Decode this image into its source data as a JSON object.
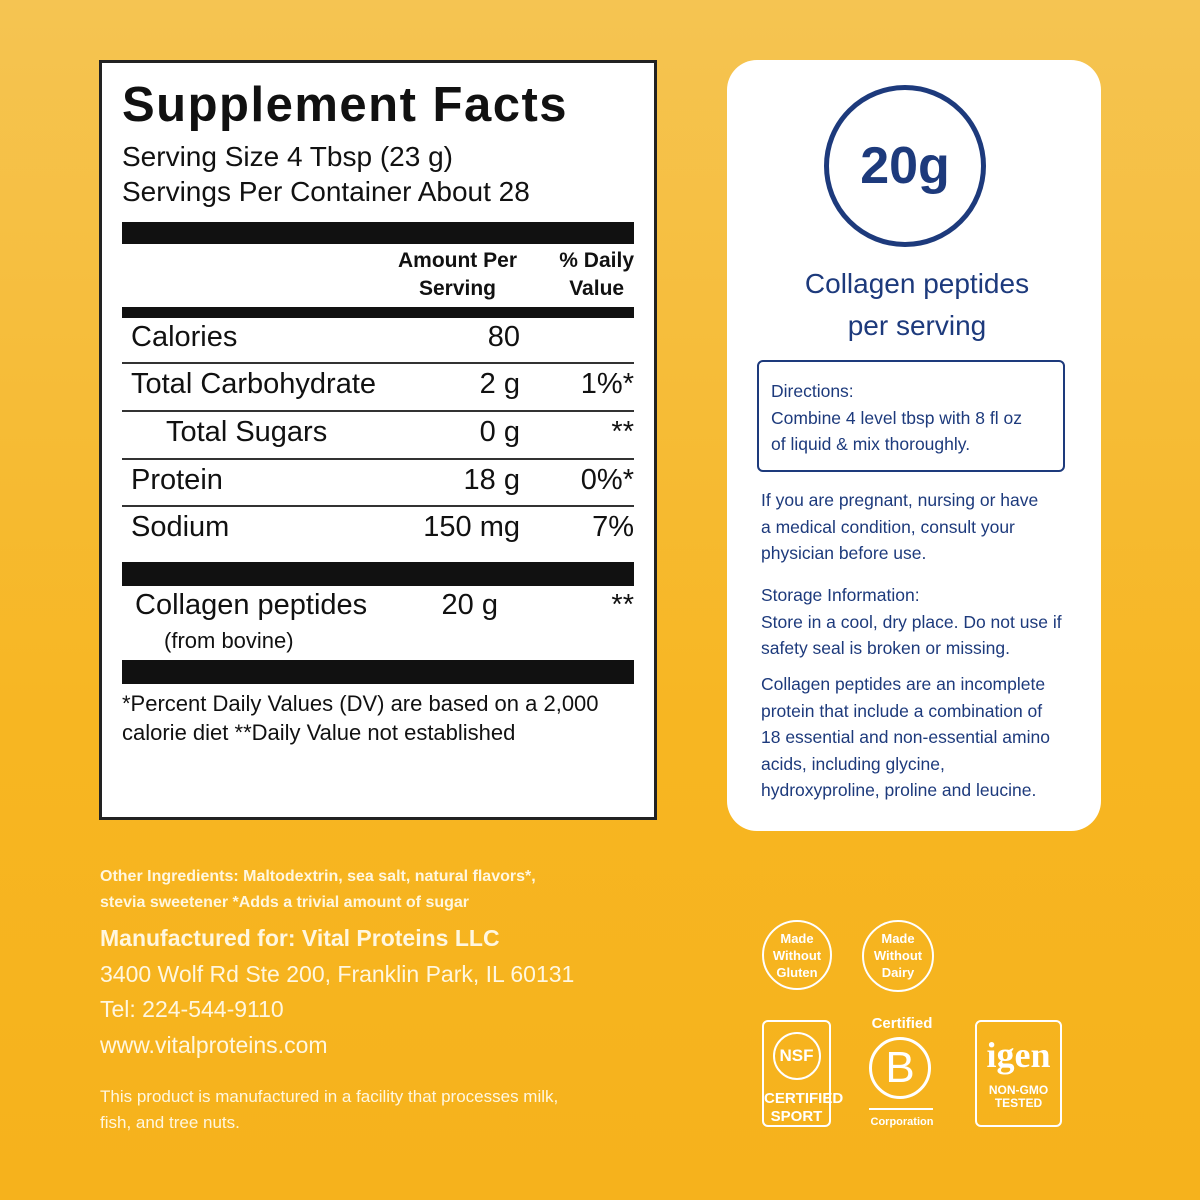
{
  "facts": {
    "title": "Supplement Facts",
    "serving_size": "Serving Size 4 Tbsp (23 g)",
    "servings_per_container": "Servings Per Container About 28",
    "header": {
      "amount": [
        "Amount Per",
        "Serving"
      ],
      "daily_value": [
        "% Daily",
        "Value"
      ]
    },
    "rows": [
      {
        "name": "Calories",
        "amount": "80"
      },
      {
        "name": "Total Carbohydrate",
        "amount": "2 g",
        "dv": "1%*"
      },
      {
        "name": "Total Sugars",
        "amount": "0 g",
        "dv": "**"
      },
      {
        "name": "Protein",
        "amount": "18 g",
        "dv": "0%*"
      },
      {
        "name": "Sodium",
        "amount": "150 mg",
        "dv": "7%"
      }
    ],
    "collagen": {
      "name": "Collagen peptides",
      "source": "(from bovine)",
      "amount": "20 g",
      "dv": "**"
    },
    "footnote": [
      "*Percent Daily Values (DV) are based on a 2,000",
      "calorie diet **Daily Value not established"
    ]
  },
  "card": {
    "badge": "20g",
    "caption": [
      "Collagen peptides",
      "per serving"
    ],
    "directions": {
      "title": "Directions:",
      "lines": [
        "Combine 4 level tbsp with 8 fl oz",
        "of liquid & mix thoroughly."
      ]
    },
    "warning": [
      "If you are pregnant, nursing or have",
      "a medical condition, consult your",
      "physician before use."
    ],
    "storage": {
      "title": "Storage Information:",
      "lines": [
        "Store in a cool, dry place. Do not use if",
        "safety seal is broken or missing."
      ]
    },
    "info": [
      "Collagen peptides are an incomplete",
      "protein that include a combination of",
      "18 essential and non-essential amino",
      "acids, including glycine,",
      "hydroxyproline, proline and leucine."
    ]
  },
  "bottom": {
    "ingredients": [
      "Other Ingredients: Maltodextrin, sea salt, natural flavors*,",
      "stevia sweetener  *Adds a trivial amount of sugar"
    ],
    "manufacturer": "Manufactured for: Vital Proteins LLC",
    "address": "3400 Wolf Rd Ste 200, Franklin Park, IL 60131",
    "tel": "Tel: 224-544-9110",
    "web": "www.vitalproteins.com",
    "facility": [
      "This product is manufactured in a facility that processes milk,",
      "fish, and tree nuts."
    ]
  },
  "badges": {
    "gluten": [
      "Made",
      "Without",
      "Gluten"
    ],
    "dairy": [
      "Made",
      "Without",
      "Dairy"
    ],
    "nsf": {
      "logo": "NSF",
      "text": [
        "CERTIFIED",
        "SPORT"
      ]
    },
    "bcorp": {
      "top": "Certified",
      "logo": "B",
      "bottom": "Corporation"
    },
    "igen": {
      "logo": "igen",
      "text": [
        "NON-GMO",
        "TESTED"
      ]
    }
  }
}
